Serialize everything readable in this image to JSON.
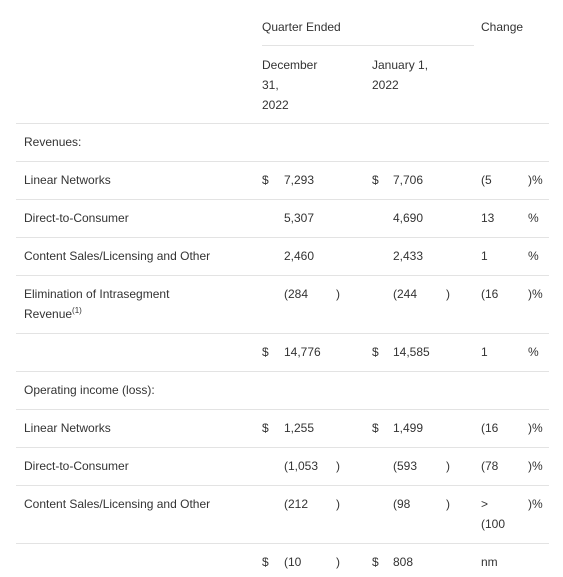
{
  "header": {
    "period": "Quarter Ended",
    "change": "Change",
    "col1": [
      "December",
      "31,",
      "2022"
    ],
    "col2": [
      "January 1,",
      "2022"
    ]
  },
  "sections": [
    {
      "label": "Revenues:"
    },
    {
      "label": "Operating income (loss):"
    }
  ],
  "rows": [
    {
      "label": "Linear Networks",
      "c1_dollar": "$",
      "c1": "7,293",
      "c1_close": "",
      "c2_dollar": "$",
      "c2": "7,706",
      "c2_close": "",
      "chg": "(5",
      "chg_sfx": ")%"
    },
    {
      "label": "Direct-to-Consumer",
      "c1_dollar": "",
      "c1": "5,307",
      "c1_close": "",
      "c2_dollar": "",
      "c2": "4,690",
      "c2_close": "",
      "chg": "13",
      "chg_sfx": "%"
    },
    {
      "label": "Content Sales/Licensing and Other",
      "c1_dollar": "",
      "c1": "2,460",
      "c1_close": "",
      "c2_dollar": "",
      "c2": "2,433",
      "c2_close": "",
      "chg": "1",
      "chg_sfx": "%"
    },
    {
      "label": "Elimination of Intrasegment",
      "label2": "Revenue",
      "footnote": "(1)",
      "c1_dollar": "",
      "c1": "(284",
      "c1_close": ")",
      "c2_dollar": "",
      "c2": "(244",
      "c2_close": ")",
      "chg": "(16",
      "chg_sfx": ")%"
    },
    {
      "label": "",
      "c1_dollar": "$",
      "c1": "14,776",
      "c1_close": "",
      "c2_dollar": "$",
      "c2": "14,585",
      "c2_close": "",
      "chg": "1",
      "chg_sfx": "%"
    },
    {
      "label": "Linear Networks",
      "c1_dollar": "$",
      "c1": "1,255",
      "c1_close": "",
      "c2_dollar": "$",
      "c2": "1,499",
      "c2_close": "",
      "chg": "(16",
      "chg_sfx": ")%"
    },
    {
      "label": "Direct-to-Consumer",
      "c1_dollar": "",
      "c1": "(1,053",
      "c1_close": ")",
      "c2_dollar": "",
      "c2": "(593",
      "c2_close": ")",
      "chg": "(78",
      "chg_sfx": ")%"
    },
    {
      "label": "Content Sales/Licensing and Other",
      "c1_dollar": "",
      "c1": "(212",
      "c1_close": ")",
      "c2_dollar": "",
      "c2": "(98",
      "c2_close": ")",
      "chg": ">",
      "chg2": "(100",
      "chg_sfx": ")%"
    },
    {
      "label": "",
      "c1_dollar": "$",
      "c1": "(10",
      "c1_close": ")",
      "c2_dollar": "$",
      "c2": "808",
      "c2_close": "",
      "chg": "nm",
      "chg_sfx": ""
    }
  ]
}
